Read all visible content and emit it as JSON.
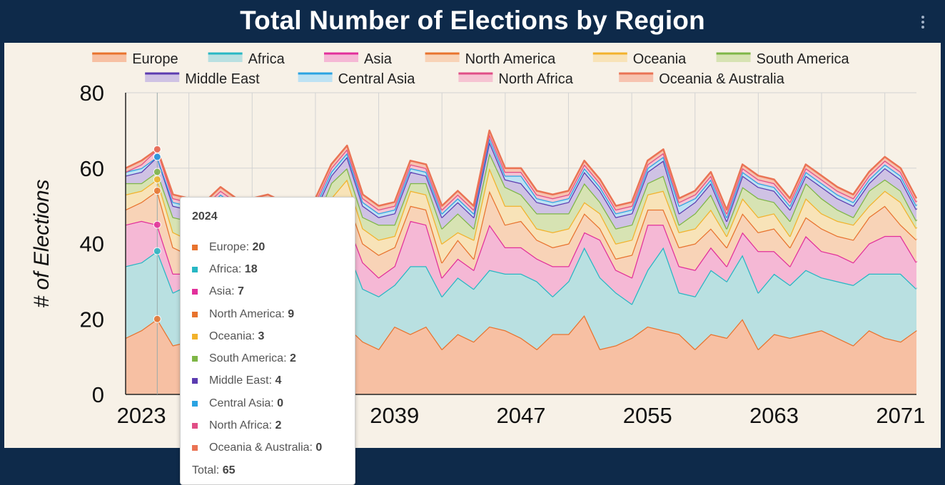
{
  "title": "Total Number of Elections by Region",
  "menu_icon": "more-vertical-icon",
  "chart_data": {
    "type": "area",
    "stacked": true,
    "title": "Total Number of Elections by Region",
    "xlabel": "",
    "ylabel": "# of Elections",
    "ylim": [
      0,
      80
    ],
    "yticks": [
      0,
      20,
      40,
      60,
      80
    ],
    "xlim": [
      2022,
      2072
    ],
    "xticks": [
      2023,
      2039,
      2047,
      2055,
      2063,
      2071
    ],
    "x_visible_tick_labels": [
      "2023",
      "2039",
      "2047",
      "2055",
      "2063",
      "2071"
    ],
    "grid": true,
    "legend": "top-center",
    "x": [
      2022,
      2023,
      2024,
      2025,
      2026,
      2027,
      2028,
      2029,
      2030,
      2031,
      2032,
      2033,
      2034,
      2035,
      2036,
      2037,
      2038,
      2039,
      2040,
      2041,
      2042,
      2043,
      2044,
      2045,
      2046,
      2047,
      2048,
      2049,
      2050,
      2051,
      2052,
      2053,
      2054,
      2055,
      2056,
      2057,
      2058,
      2059,
      2060,
      2061,
      2062,
      2063,
      2064,
      2065,
      2066,
      2067,
      2068,
      2069,
      2070,
      2071,
      2072
    ],
    "series": [
      {
        "name": "Europe",
        "color": "#e8732e",
        "fill": "#f7c0a3",
        "values": [
          15,
          17,
          20,
          13,
          14,
          16,
          14,
          13,
          14,
          15,
          14,
          15,
          14,
          17,
          18,
          14,
          12,
          18,
          16,
          18,
          12,
          16,
          14,
          18,
          17,
          15,
          12,
          16,
          16,
          21,
          12,
          13,
          15,
          18,
          17,
          16,
          12,
          16,
          15,
          20,
          12,
          16,
          15,
          16,
          17,
          15,
          13,
          17,
          15,
          14,
          17
        ]
      },
      {
        "name": "Africa",
        "color": "#27b7c4",
        "fill": "#b9e0e1",
        "values": [
          19,
          18,
          18,
          14,
          15,
          14,
          15,
          16,
          15,
          12,
          14,
          13,
          10,
          16,
          21,
          14,
          14,
          11,
          18,
          16,
          14,
          15,
          14,
          15,
          15,
          17,
          18,
          10,
          14,
          18,
          19,
          14,
          9,
          15,
          22,
          11,
          14,
          17,
          15,
          17,
          15,
          16,
          14,
          17,
          14,
          15,
          16,
          15,
          17,
          18,
          11
        ]
      },
      {
        "name": "Asia",
        "color": "#e22f9b",
        "fill": "#f5b8d5",
        "values": [
          11,
          11,
          7,
          5,
          3,
          4,
          4,
          5,
          4,
          4,
          3,
          5,
          6,
          10,
          7,
          7,
          5,
          5,
          12,
          11,
          5,
          5,
          5,
          12,
          7,
          7,
          6,
          8,
          4,
          4,
          10,
          6,
          7,
          12,
          6,
          7,
          7,
          6,
          4,
          6,
          11,
          6,
          5,
          9,
          7,
          7,
          6,
          8,
          10,
          10,
          7
        ]
      },
      {
        "name": "North America",
        "color": "#e8732e",
        "fill": "#f8d3b7",
        "values": [
          4,
          5,
          9,
          7,
          5,
          6,
          8,
          6,
          5,
          7,
          6,
          4,
          8,
          5,
          6,
          5,
          6,
          5,
          4,
          4,
          4,
          5,
          3,
          9,
          6,
          7,
          5,
          5,
          6,
          5,
          3,
          3,
          6,
          4,
          4,
          5,
          7,
          5,
          5,
          5,
          5,
          6,
          5,
          5,
          6,
          5,
          6,
          7,
          8,
          3,
          6
        ]
      },
      {
        "name": "Oceania",
        "color": "#f2b22b",
        "fill": "#f8e3b8",
        "values": [
          4,
          3,
          3,
          4,
          4,
          3,
          4,
          3,
          5,
          5,
          4,
          4,
          4,
          4,
          5,
          4,
          4,
          3,
          4,
          4,
          5,
          2,
          5,
          6,
          5,
          4,
          3,
          4,
          4,
          3,
          4,
          4,
          4,
          4,
          5,
          4,
          4,
          5,
          3,
          4,
          4,
          4,
          3,
          5,
          4,
          4,
          4,
          3,
          4,
          6,
          3
        ]
      },
      {
        "name": "South America",
        "color": "#7eb646",
        "fill": "#d7e3b3",
        "values": [
          3,
          2,
          2,
          4,
          5,
          3,
          4,
          3,
          3,
          4,
          4,
          4,
          4,
          4,
          3,
          3,
          4,
          3,
          2,
          3,
          4,
          5,
          3,
          4,
          5,
          3,
          4,
          5,
          4,
          5,
          3,
          4,
          4,
          3,
          4,
          2,
          4,
          4,
          2,
          3,
          5,
          3,
          4,
          4,
          4,
          3,
          2,
          4,
          3,
          3,
          2
        ]
      },
      {
        "name": "Middle East",
        "color": "#5b3bb0",
        "fill": "#cfc2e4",
        "values": [
          2,
          3,
          4,
          3,
          3,
          2,
          3,
          3,
          3,
          3,
          3,
          3,
          3,
          2,
          3,
          3,
          2,
          3,
          3,
          2,
          3,
          3,
          3,
          3,
          2,
          3,
          3,
          2,
          3,
          3,
          3,
          3,
          3,
          3,
          4,
          3,
          3,
          3,
          2,
          3,
          3,
          3,
          3,
          2,
          3,
          3,
          3,
          2,
          3,
          3,
          3
        ]
      },
      {
        "name": "Central Asia",
        "color": "#2aa3e2",
        "fill": "#bde2f3",
        "values": [
          1,
          1,
          0,
          1,
          1,
          1,
          1,
          1,
          1,
          1,
          1,
          1,
          1,
          1,
          1,
          1,
          1,
          1,
          1,
          1,
          1,
          1,
          1,
          1,
          1,
          2,
          1,
          1,
          1,
          1,
          1,
          1,
          1,
          1,
          1,
          2,
          1,
          1,
          1,
          1,
          1,
          1,
          1,
          1,
          1,
          1,
          1,
          1,
          1,
          1,
          1
        ]
      },
      {
        "name": "North Africa",
        "color": "#e04e86",
        "fill": "#f6c3d2",
        "values": [
          0,
          1,
          2,
          1,
          1,
          1,
          1,
          1,
          1,
          1,
          1,
          1,
          1,
          1,
          1,
          1,
          1,
          1,
          1,
          1,
          1,
          1,
          1,
          1,
          1,
          1,
          1,
          1,
          1,
          1,
          1,
          1,
          1,
          1,
          1,
          1,
          1,
          1,
          1,
          1,
          1,
          1,
          1,
          1,
          1,
          1,
          1,
          1,
          1,
          1,
          1
        ]
      },
      {
        "name": "Oceania & Australia",
        "color": "#ea7354",
        "fill": "#f7c3b0",
        "values": [
          1,
          1,
          0,
          1,
          1,
          1,
          1,
          1,
          1,
          1,
          1,
          1,
          1,
          1,
          1,
          1,
          1,
          1,
          1,
          1,
          1,
          1,
          1,
          1,
          1,
          1,
          1,
          1,
          1,
          1,
          1,
          1,
          1,
          1,
          1,
          1,
          1,
          1,
          1,
          1,
          1,
          1,
          1,
          1,
          1,
          1,
          1,
          1,
          1,
          1,
          1
        ]
      }
    ],
    "tooltip": {
      "header": "2024",
      "rows": [
        {
          "label": "Europe",
          "value": "20",
          "color": "#e8732e"
        },
        {
          "label": "Africa",
          "value": "18",
          "color": "#27b7c4"
        },
        {
          "label": "Asia",
          "value": "7",
          "color": "#e22f9b"
        },
        {
          "label": "North America",
          "value": "9",
          "color": "#e8732e"
        },
        {
          "label": "Oceania",
          "value": "3",
          "color": "#f2b22b"
        },
        {
          "label": "South America",
          "value": "2",
          "color": "#7eb646"
        },
        {
          "label": "Middle East",
          "value": "4",
          "color": "#5b3bb0"
        },
        {
          "label": "Central Asia",
          "value": "0",
          "color": "#2aa3e2"
        },
        {
          "label": "North Africa",
          "value": "2",
          "color": "#e04e86"
        },
        {
          "label": "Oceania & Australia",
          "value": "0",
          "color": "#ea7354"
        }
      ],
      "total_label": "Total",
      "total_value": "65"
    }
  }
}
